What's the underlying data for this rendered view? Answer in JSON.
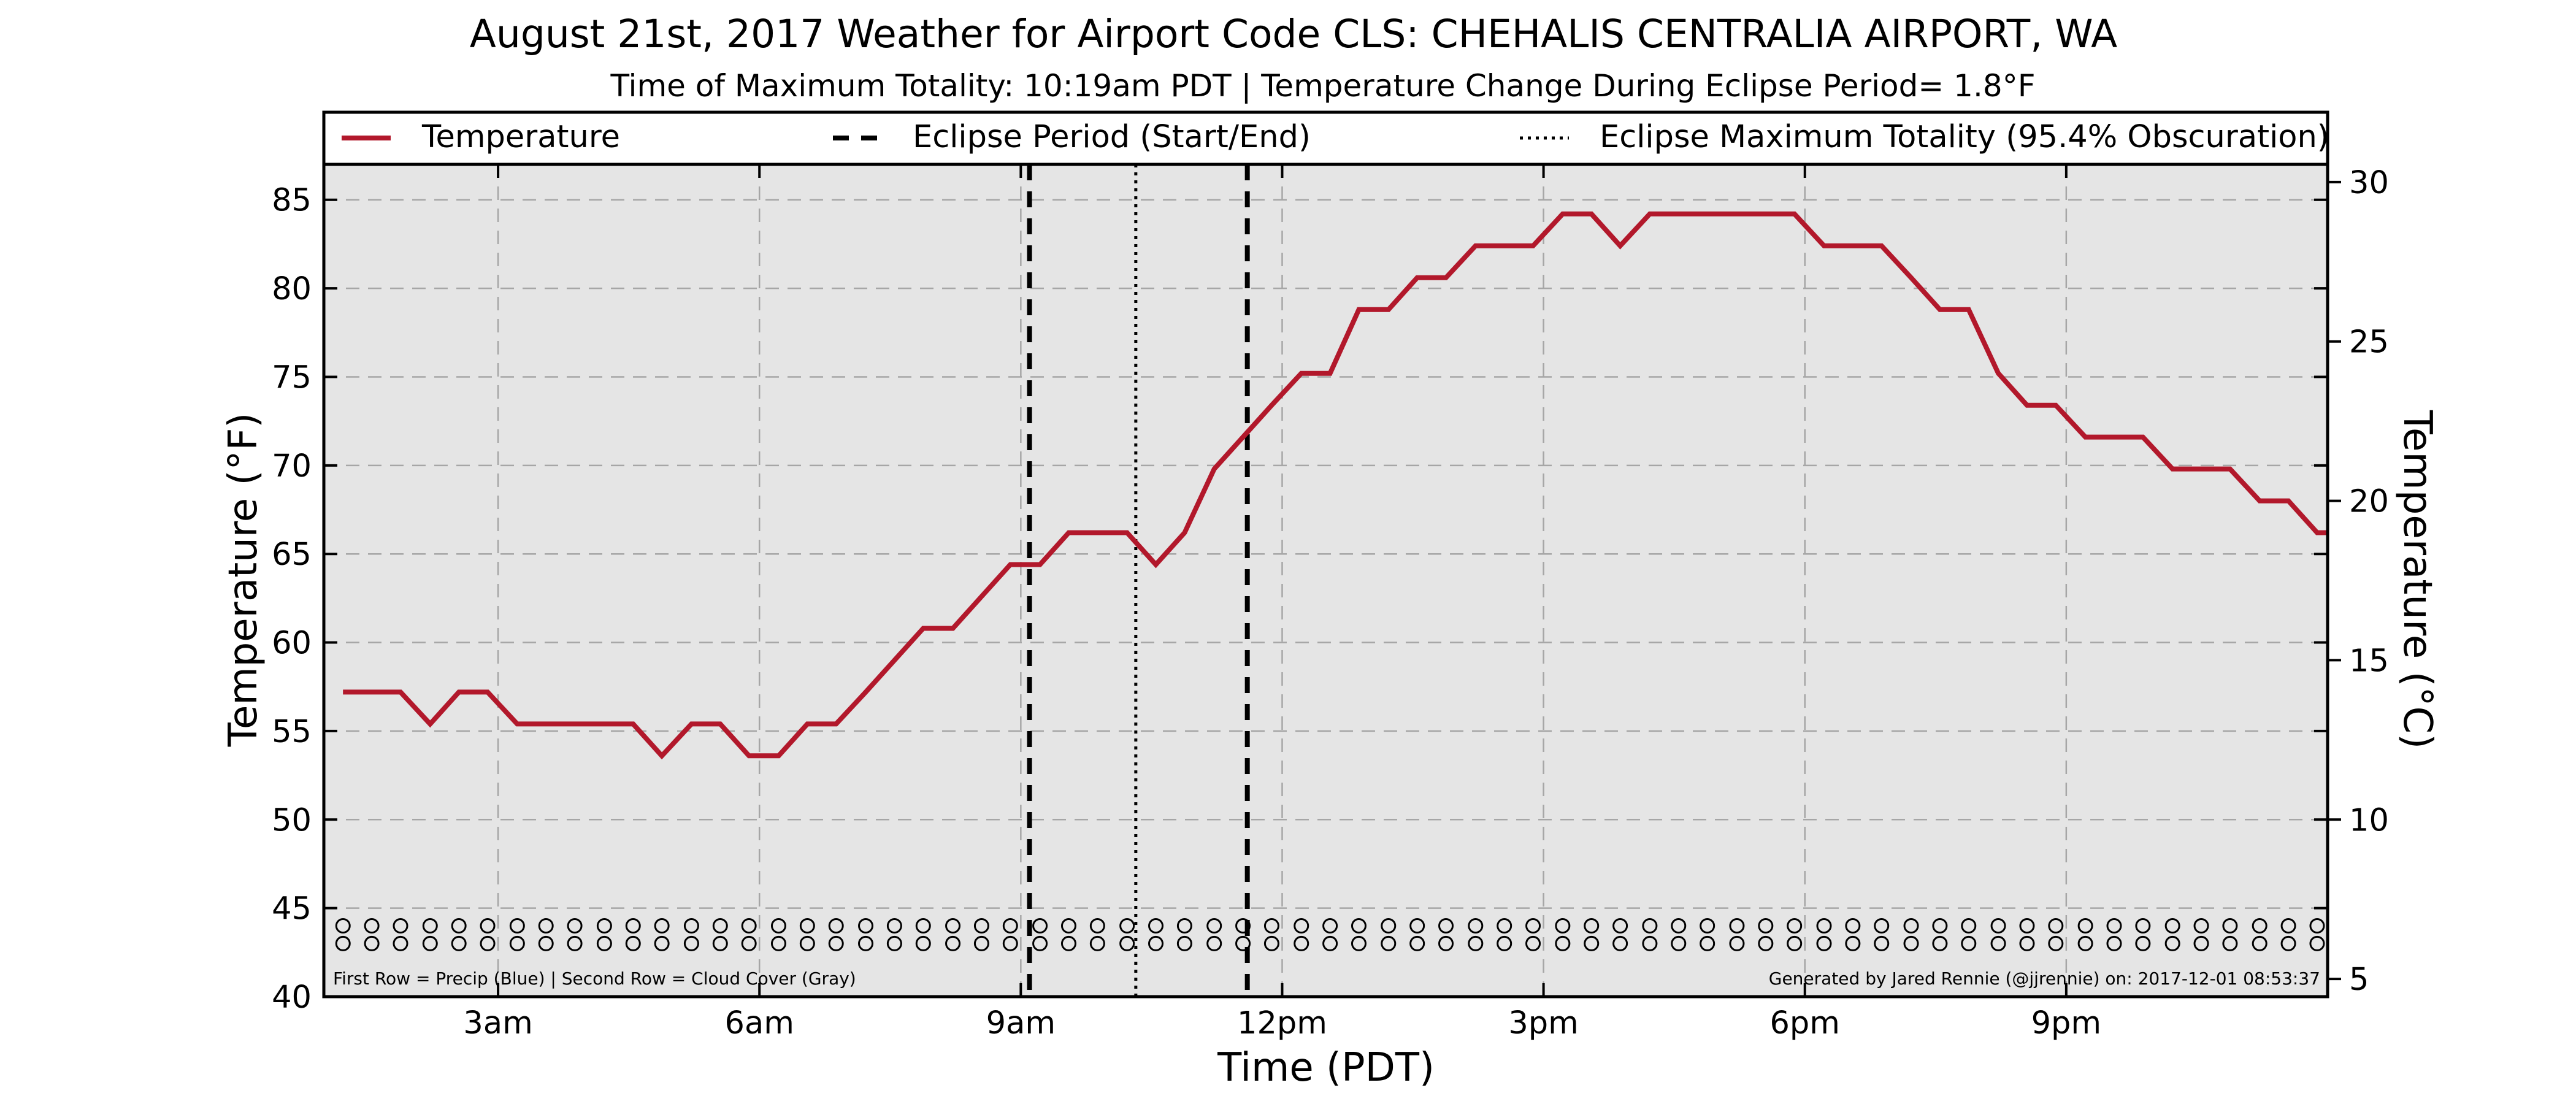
{
  "chart_data": {
    "type": "line",
    "title": "August 21st, 2017 Weather for Airport Code CLS: CHEHALIS CENTRALIA AIRPORT, WA",
    "subtitle": "Time of Maximum Totality: 10:19am PDT | Temperature Change During Eclipse Period= 1.8°F",
    "xlabel": "Time (PDT)",
    "ylabel": "Temperature (°F)",
    "ylabel_right": "Temperature (°C)",
    "x_unit": "hours after midnight PDT",
    "xlim": [
      1.0,
      24.0
    ],
    "ylim": [
      40,
      87
    ],
    "ylim_right_celsius": [
      4.44,
      30.56
    ],
    "x_ticks": [
      {
        "x": 3,
        "label": "3am"
      },
      {
        "x": 6,
        "label": "6am"
      },
      {
        "x": 9,
        "label": "9am"
      },
      {
        "x": 12,
        "label": "12pm"
      },
      {
        "x": 15,
        "label": "3pm"
      },
      {
        "x": 18,
        "label": "6pm"
      },
      {
        "x": 21,
        "label": "9pm"
      }
    ],
    "y_ticks": [
      40,
      45,
      50,
      55,
      60,
      65,
      70,
      75,
      80,
      85
    ],
    "y_ticks_right": [
      5,
      10,
      15,
      20,
      25,
      30
    ],
    "grid": true,
    "legend_position": "top, above plot",
    "legend": {
      "temperature": "Temperature",
      "eclipse_period": "Eclipse Period (Start/End)",
      "max_totality": "Eclipse Maximum Totality (95.4% Obscuration)"
    },
    "series": [
      {
        "name": "Temperature",
        "color": "#b2182b",
        "points": [
          [
            1.22,
            57.2
          ],
          [
            1.55,
            57.2
          ],
          [
            1.88,
            57.2
          ],
          [
            2.22,
            55.4
          ],
          [
            2.55,
            57.2
          ],
          [
            2.88,
            57.2
          ],
          [
            3.22,
            55.4
          ],
          [
            3.55,
            55.4
          ],
          [
            3.88,
            55.4
          ],
          [
            4.22,
            55.4
          ],
          [
            4.55,
            55.4
          ],
          [
            4.88,
            53.6
          ],
          [
            5.22,
            55.4
          ],
          [
            5.55,
            55.4
          ],
          [
            5.88,
            53.6
          ],
          [
            6.22,
            53.6
          ],
          [
            6.55,
            55.4
          ],
          [
            6.88,
            55.4
          ],
          [
            7.22,
            57.2
          ],
          [
            7.55,
            59.0
          ],
          [
            7.88,
            60.8
          ],
          [
            8.22,
            60.8
          ],
          [
            8.55,
            62.6
          ],
          [
            8.88,
            64.4
          ],
          [
            9.22,
            64.4
          ],
          [
            9.55,
            66.2
          ],
          [
            9.88,
            66.2
          ],
          [
            10.22,
            66.2
          ],
          [
            10.55,
            64.4
          ],
          [
            10.88,
            66.2
          ],
          [
            11.22,
            69.8
          ],
          [
            11.55,
            71.6
          ],
          [
            11.88,
            73.4
          ],
          [
            12.22,
            75.2
          ],
          [
            12.55,
            75.2
          ],
          [
            12.88,
            78.8
          ],
          [
            13.22,
            78.8
          ],
          [
            13.55,
            80.6
          ],
          [
            13.88,
            80.6
          ],
          [
            14.22,
            82.4
          ],
          [
            14.55,
            82.4
          ],
          [
            14.88,
            82.4
          ],
          [
            15.22,
            84.2
          ],
          [
            15.55,
            84.2
          ],
          [
            15.88,
            82.4
          ],
          [
            16.22,
            84.2
          ],
          [
            16.55,
            84.2
          ],
          [
            16.88,
            84.2
          ],
          [
            17.22,
            84.2
          ],
          [
            17.55,
            84.2
          ],
          [
            17.88,
            84.2
          ],
          [
            18.22,
            82.4
          ],
          [
            18.55,
            82.4
          ],
          [
            18.88,
            82.4
          ],
          [
            19.22,
            80.6
          ],
          [
            19.55,
            78.8
          ],
          [
            19.88,
            78.8
          ],
          [
            20.22,
            75.2
          ],
          [
            20.55,
            73.4
          ],
          [
            20.88,
            73.4
          ],
          [
            21.22,
            71.6
          ],
          [
            21.55,
            71.6
          ],
          [
            21.88,
            71.6
          ],
          [
            22.22,
            69.8
          ],
          [
            22.55,
            69.8
          ],
          [
            22.88,
            69.8
          ],
          [
            23.22,
            68.0
          ],
          [
            23.55,
            68.0
          ],
          [
            23.88,
            66.2
          ],
          [
            24.0,
            66.2
          ]
        ]
      }
    ],
    "eclipse_start": 9.1,
    "eclipse_end": 11.6,
    "max_totality": 10.32,
    "precip_row": {
      "y": 44.0,
      "symbol": "O",
      "color": "#0000ff",
      "x": [
        1.22,
        1.55,
        1.88,
        2.22,
        2.55,
        2.88,
        3.22,
        3.55,
        3.88,
        4.22,
        4.55,
        4.88,
        5.22,
        5.55,
        5.88,
        6.22,
        6.55,
        6.88,
        7.22,
        7.55,
        7.88,
        8.22,
        8.55,
        8.88,
        9.22,
        9.55,
        9.88,
        10.22,
        10.55,
        10.88,
        11.22,
        11.55,
        11.88,
        12.22,
        12.55,
        12.88,
        13.22,
        13.55,
        13.88,
        14.22,
        14.55,
        14.88,
        15.22,
        15.55,
        15.88,
        16.22,
        16.55,
        16.88,
        17.22,
        17.55,
        17.88,
        18.22,
        18.55,
        18.88,
        19.22,
        19.55,
        19.88,
        20.22,
        20.55,
        20.88,
        21.22,
        21.55,
        21.88,
        22.22,
        22.55,
        22.88,
        23.22,
        23.55,
        23.88
      ]
    },
    "cloud_row": {
      "y": 43.0,
      "symbol": "O",
      "color": "#808080",
      "x": [
        1.22,
        1.55,
        1.88,
        2.22,
        2.55,
        2.88,
        3.22,
        3.55,
        3.88,
        4.22,
        4.55,
        4.88,
        5.22,
        5.55,
        5.88,
        6.22,
        6.55,
        6.88,
        7.22,
        7.55,
        7.88,
        8.22,
        8.55,
        8.88,
        9.22,
        9.55,
        9.88,
        10.22,
        10.55,
        10.88,
        11.22,
        11.55,
        11.88,
        12.22,
        12.55,
        12.88,
        13.22,
        13.55,
        13.88,
        14.22,
        14.55,
        14.88,
        15.22,
        15.55,
        15.88,
        16.22,
        16.55,
        16.88,
        17.22,
        17.55,
        17.88,
        18.22,
        18.55,
        18.88,
        19.22,
        19.55,
        19.88,
        20.22,
        20.55,
        20.88,
        21.22,
        21.55,
        21.88,
        22.22,
        22.55,
        22.88,
        23.22,
        23.55,
        23.88
      ]
    },
    "annotations": {
      "bottom_left": "First Row = Precip (Blue) | Second Row = Cloud Cover (Gray)",
      "bottom_right": "Generated by Jared Rennie (@jjrennie) on: 2017-12-01 08:53:37"
    },
    "colors": {
      "plot_background": "#e5e5e5",
      "temperature_line": "#b2182b",
      "eclipse_lines": "#000000",
      "grid": "#a6a6a6"
    }
  }
}
